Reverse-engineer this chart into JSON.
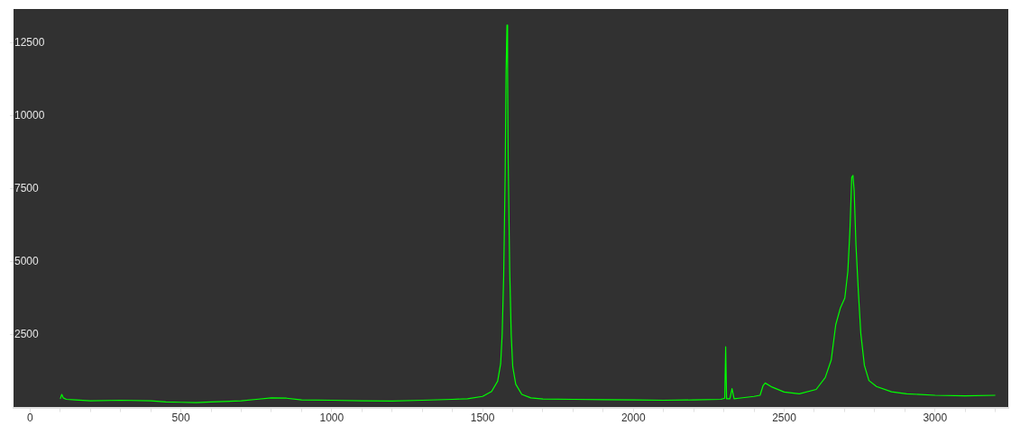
{
  "chart_data": {
    "type": "line",
    "xlim": [
      -55,
      3243
    ],
    "ylim": [
      0,
      13650
    ],
    "xticks": [
      0,
      {
        "value": 100,
        "label": null
      },
      {
        "value": 200,
        "label": null
      },
      {
        "value": 300,
        "label": null
      },
      {
        "value": 400,
        "label": null
      },
      500,
      {
        "value": 600,
        "label": null
      },
      {
        "value": 700,
        "label": null
      },
      {
        "value": 800,
        "label": null
      },
      {
        "value": 900,
        "label": null
      },
      1000,
      {
        "value": 1100,
        "label": null
      },
      {
        "value": 1200,
        "label": null
      },
      {
        "value": 1300,
        "label": null
      },
      {
        "value": 1400,
        "label": null
      },
      1500,
      {
        "value": 1600,
        "label": null
      },
      {
        "value": 1700,
        "label": null
      },
      {
        "value": 1800,
        "label": null
      },
      {
        "value": 1900,
        "label": null
      },
      2000,
      {
        "value": 2100,
        "label": null
      },
      {
        "value": 2200,
        "label": null
      },
      {
        "value": 2300,
        "label": null
      },
      {
        "value": 2400,
        "label": null
      },
      2500,
      {
        "value": 2600,
        "label": null
      },
      {
        "value": 2700,
        "label": null
      },
      {
        "value": 2800,
        "label": null
      },
      {
        "value": 2900,
        "label": null
      },
      3000,
      {
        "value": 3100,
        "label": null
      },
      {
        "value": 3200,
        "label": null
      }
    ],
    "yticks": [
      2500,
      5000,
      7500,
      10000,
      12500
    ],
    "grid": false,
    "legend": false,
    "marker": "none",
    "series": [
      {
        "color": "#00ff00",
        "x": [
          100,
          105,
          110,
          120,
          150,
          200,
          300,
          400,
          450,
          500,
          550,
          600,
          700,
          750,
          800,
          850,
          900,
          1000,
          1100,
          1200,
          1300,
          1400,
          1450,
          1500,
          1530,
          1550,
          1560,
          1565,
          1570,
          1575,
          1578,
          1581,
          1583,
          1585,
          1590,
          1595,
          1600,
          1610,
          1630,
          1660,
          1700,
          1800,
          1900,
          2000,
          2100,
          2200,
          2290,
          2303,
          2306,
          2309,
          2320,
          2327,
          2334,
          2350,
          2400,
          2420,
          2430,
          2437,
          2460,
          2500,
          2550,
          2606,
          2636,
          2656,
          2671,
          2686,
          2701,
          2711,
          2718,
          2724,
          2728,
          2732,
          2738,
          2746,
          2754,
          2766,
          2781,
          2806,
          2856,
          2906,
          3000,
          3100,
          3200
        ],
        "values": [
          300,
          450,
          330,
          280,
          260,
          230,
          250,
          230,
          190,
          180,
          170,
          190,
          230,
          280,
          330,
          320,
          260,
          250,
          230,
          220,
          250,
          280,
          300,
          380,
          550,
          900,
          1500,
          2500,
          4500,
          8000,
          11500,
          13100,
          11600,
          8500,
          4700,
          2500,
          1400,
          800,
          450,
          330,
          290,
          280,
          270,
          260,
          250,
          260,
          280,
          320,
          2080,
          300,
          300,
          650,
          300,
          320,
          380,
          420,
          750,
          840,
          700,
          530,
          470,
          620,
          1025,
          1630,
          2840,
          3400,
          3750,
          4660,
          6075,
          7890,
          7950,
          7430,
          5570,
          3950,
          2540,
          1440,
          925,
          720,
          540,
          470,
          420,
          400,
          420
        ]
      }
    ]
  }
}
